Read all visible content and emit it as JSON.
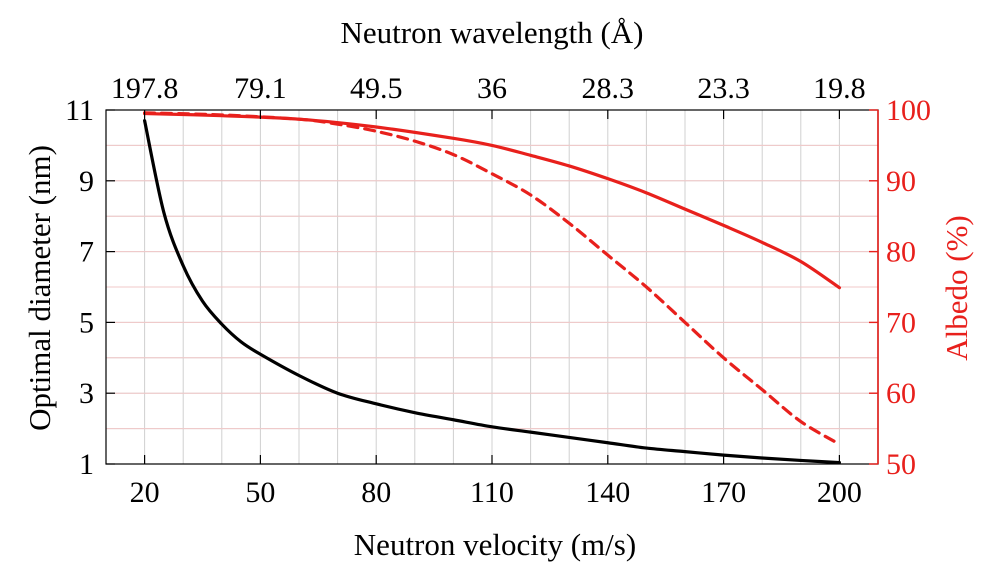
{
  "chart_data": {
    "type": "line",
    "xlabel": "Neutron velocity (m/s)",
    "x2label": "Neutron wavelength (Å)",
    "ylabel": "Optimal diameter (nm)",
    "y2label": "Albedo (%)",
    "xlim": [
      10,
      210
    ],
    "ylim": [
      1,
      11
    ],
    "y2lim": [
      50,
      100
    ],
    "x_ticks": [
      "20",
      "50",
      "80",
      "110",
      "140",
      "170",
      "200"
    ],
    "x2_ticks": [
      "197.8",
      "79.1",
      "49.5",
      "36",
      "28.3",
      "23.3",
      "19.8"
    ],
    "y_ticks": [
      "1",
      "3",
      "5",
      "7",
      "9",
      "11"
    ],
    "y2_ticks": [
      "50",
      "60",
      "70",
      "80",
      "90",
      "100"
    ],
    "grid": true,
    "colors": {
      "left": "#000000",
      "right": "#e8201c",
      "grid": "#d0d0d0",
      "grid_red": "#f2c8c8"
    },
    "series": [
      {
        "axis": "left",
        "style": "solid",
        "color": "#000000",
        "x": [
          20,
          25,
          30,
          35,
          40,
          45,
          50,
          60,
          70,
          80,
          90,
          100,
          110,
          120,
          130,
          140,
          150,
          160,
          170,
          180,
          190,
          200
        ],
        "y": [
          10.7,
          8.1,
          6.6,
          5.6,
          4.95,
          4.45,
          4.1,
          3.5,
          3.0,
          2.7,
          2.45,
          2.25,
          2.05,
          1.9,
          1.75,
          1.6,
          1.45,
          1.35,
          1.25,
          1.17,
          1.1,
          1.04
        ]
      },
      {
        "axis": "right",
        "style": "solid",
        "color": "#e8201c",
        "x": [
          20,
          40,
          60,
          80,
          100,
          110,
          120,
          130,
          140,
          150,
          160,
          170,
          180,
          190,
          200
        ],
        "y": [
          99.5,
          99.2,
          98.7,
          97.6,
          96.0,
          95.0,
          93.6,
          92.1,
          90.3,
          88.3,
          86.0,
          83.7,
          81.3,
          78.6,
          74.9
        ]
      },
      {
        "axis": "right",
        "style": "dashed",
        "color": "#e8201c",
        "x": [
          20,
          40,
          60,
          70,
          80,
          90,
          100,
          110,
          120,
          130,
          140,
          150,
          160,
          170,
          180,
          190,
          200
        ],
        "y": [
          99.6,
          99.3,
          98.7,
          98.0,
          97.0,
          95.6,
          93.7,
          91.0,
          88.0,
          84.0,
          79.5,
          75.0,
          70.0,
          65.0,
          60.5,
          56.0,
          52.8
        ]
      }
    ]
  }
}
